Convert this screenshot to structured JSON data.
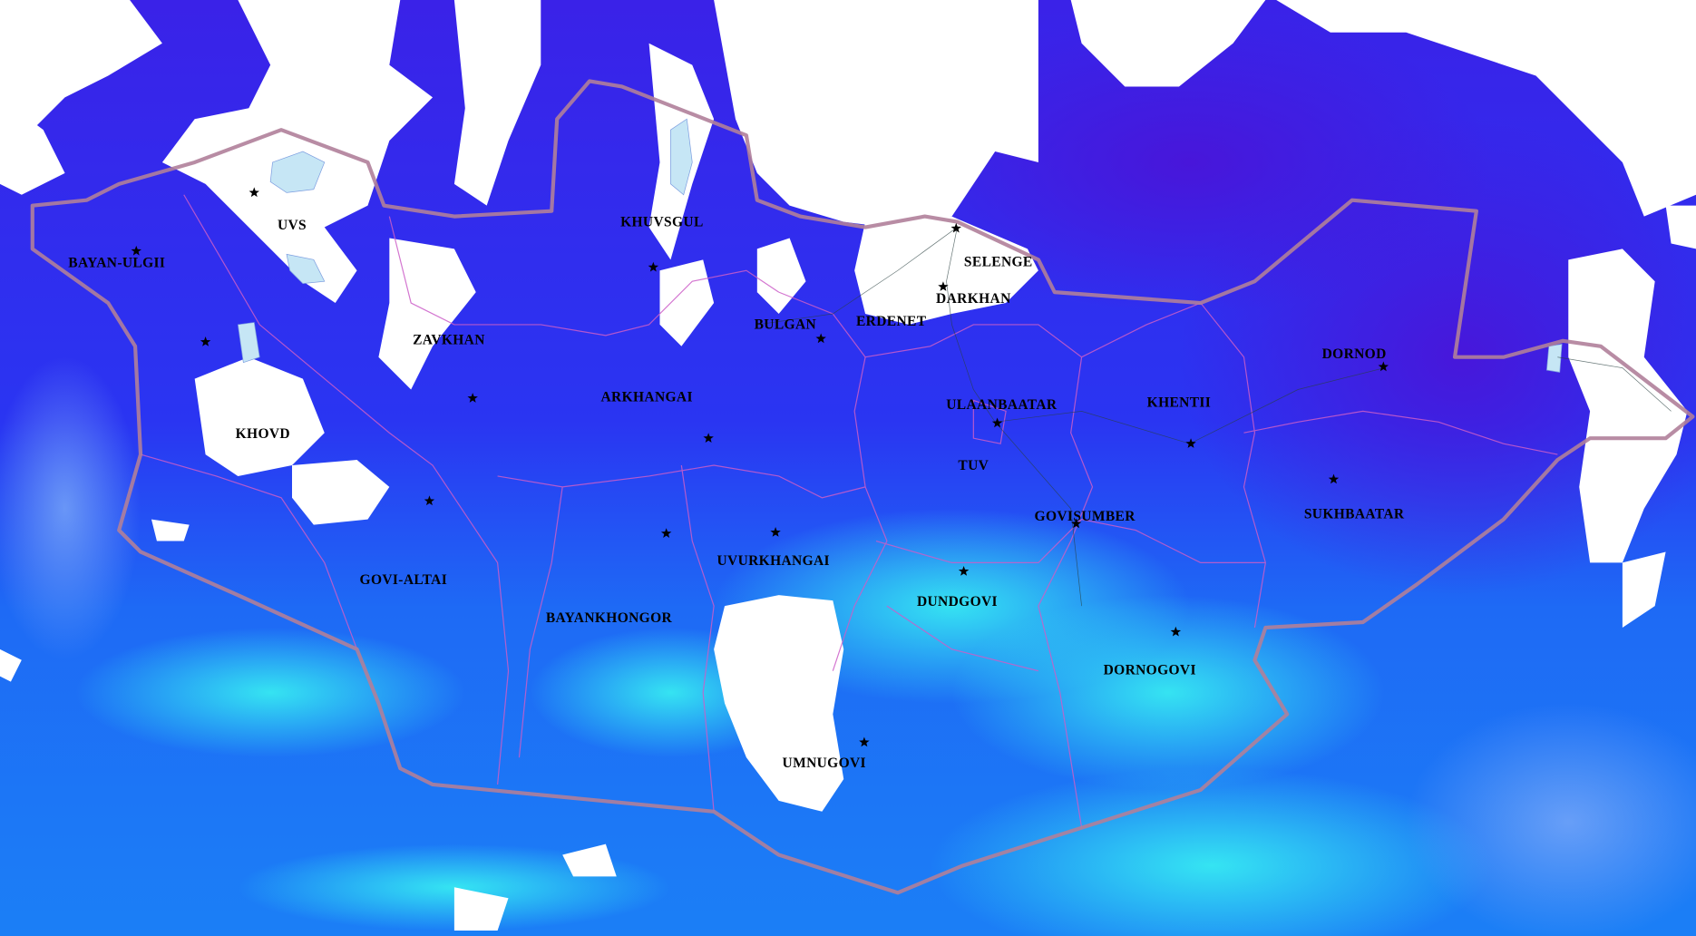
{
  "map": {
    "colors": {
      "cloud": "#ffffff",
      "deep": "#3b1de6",
      "mid": "#2433f2",
      "light": "#1a7cf6",
      "cyan": "#33e6f2",
      "lake": "#c6e6f5",
      "country_border": "#b07f9a",
      "province_border": "#cc66cc"
    },
    "provinces": [
      {
        "name": "UVS"
      },
      {
        "name": "BAYAN-ULGII"
      },
      {
        "name": "KHOVD"
      },
      {
        "name": "ZAVKHAN"
      },
      {
        "name": "KHUVSGUL"
      },
      {
        "name": "ARKHANGAI"
      },
      {
        "name": "BULGAN"
      },
      {
        "name": "ERDENET"
      },
      {
        "name": "SELENGE"
      },
      {
        "name": "DARKHAN"
      },
      {
        "name": "ULAANBAATAR"
      },
      {
        "name": "TUV"
      },
      {
        "name": "KHENTII"
      },
      {
        "name": "DORNOD"
      },
      {
        "name": "SUKHBAATAR"
      },
      {
        "name": "GOVISUMBER"
      },
      {
        "name": "GOVI-ALTAI"
      },
      {
        "name": "BAYANKHONGOR"
      },
      {
        "name": "UVURKHANGAI"
      },
      {
        "name": "DUNDGOVI"
      },
      {
        "name": "DORNOGOVI"
      },
      {
        "name": "UMNUGOVI"
      }
    ],
    "capital_icon": "star-icon"
  }
}
